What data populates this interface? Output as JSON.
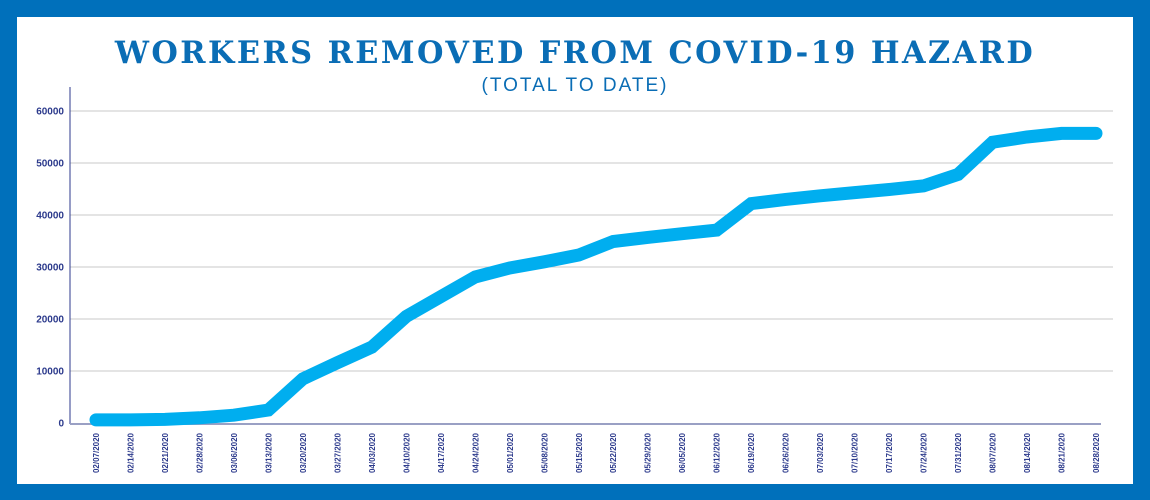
{
  "header": {
    "title": "WORKERS REMOVED FROM COVID-19 HAZARD",
    "subtitle": "(TOTAL TO DATE)"
  },
  "colors": {
    "border": "#0070bb",
    "title": "#0a6db5",
    "line": "#00aeef",
    "axis_text": "#2c3a8c",
    "gridline": "#c8c8c8"
  },
  "chart_data": {
    "type": "line",
    "title": "WORKERS REMOVED FROM COVID-19 HAZARD",
    "subtitle": "(TOTAL TO DATE)",
    "xlabel": "",
    "ylabel": "",
    "ylim": [
      0,
      60000
    ],
    "yticks": [
      0,
      10000,
      20000,
      30000,
      40000,
      50000,
      60000
    ],
    "grid": true,
    "legend": "none",
    "categories": [
      "02/07/2020",
      "02/14/2020",
      "02/21/2020",
      "02/28/2020",
      "03/06/2020",
      "03/13/2020",
      "03/20/2020",
      "03/27/2020",
      "04/03/2020",
      "04/10/2020",
      "04/17/2020",
      "04/24/2020",
      "05/01/2020",
      "05/08/2020",
      "05/15/2020",
      "05/22/2020",
      "05/29/2020",
      "06/05/2020",
      "06/12/2020",
      "06/19/2020",
      "06/26/2020",
      "07/03/2020",
      "07/10/2020",
      "07/17/2020",
      "07/24/2020",
      "07/31/2020",
      "08/07/2020",
      "08/14/2020",
      "08/21/2020",
      "08/28/2020"
    ],
    "series": [
      {
        "name": "Workers removed (total to date)",
        "values": [
          600,
          600,
          700,
          1000,
          1500,
          2500,
          8500,
          11600,
          14600,
          20500,
          24300,
          28100,
          29800,
          31000,
          32300,
          34900,
          35700,
          36400,
          37100,
          42200,
          43000,
          43700,
          44300,
          44900,
          45600,
          47800,
          54000,
          55000,
          55700,
          55700
        ]
      }
    ]
  }
}
